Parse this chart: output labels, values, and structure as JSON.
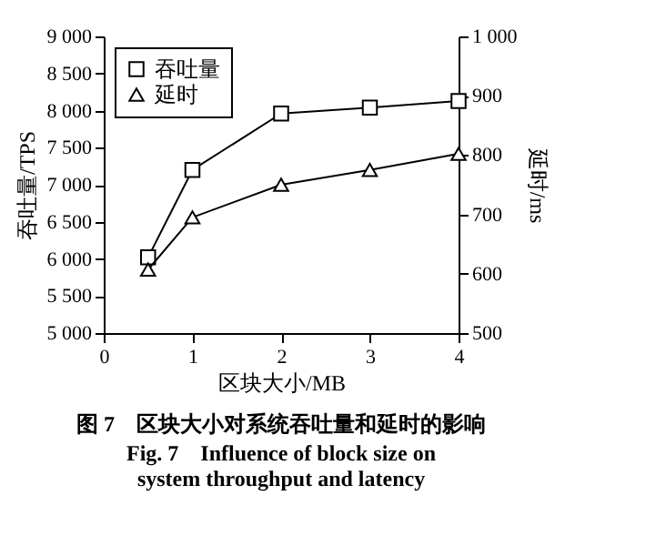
{
  "chart_data": {
    "type": "line",
    "title": "图 7　区块大小对系统吞吐量和延时的影响",
    "subtitle": "Fig. 7　Influence of block size on system throughput and latency",
    "xlabel": "区块大小/MB",
    "ylabel": "吞吐量/TPS",
    "y2label": "延时/ms",
    "x": [
      0.5,
      1,
      2,
      3,
      4
    ],
    "series": [
      {
        "name": "吞吐量",
        "color": "#000000",
        "marker": "square",
        "values": [
          6020,
          7200,
          7960,
          8040,
          8130
        ]
      },
      {
        "name": "延时",
        "color": "#000000",
        "marker": "triangle",
        "axis": "y2",
        "values": [
          607,
          695,
          750,
          775,
          802
        ]
      }
    ],
    "xlim": [
      0,
      4
    ],
    "xticks": [
      0,
      1,
      2,
      3,
      4
    ],
    "ylim": [
      5000,
      9000
    ],
    "yticks": [
      {
        "value": 5000,
        "label": "5 000"
      },
      {
        "value": 5500,
        "label": "5 500"
      },
      {
        "value": 6000,
        "label": "6 000"
      },
      {
        "value": 6500,
        "label": "6 500"
      },
      {
        "value": 7000,
        "label": "7 000"
      },
      {
        "value": 7500,
        "label": "7 500"
      },
      {
        "value": 8000,
        "label": "8 000"
      },
      {
        "value": 8500,
        "label": "8 500"
      },
      {
        "value": 9000,
        "label": "9 000"
      }
    ],
    "y2lim": [
      500,
      1000
    ],
    "y2ticks": [
      500,
      600,
      700,
      800,
      900,
      {
        "value": 1000,
        "label": "1 000"
      }
    ],
    "legend": "top left",
    "grid": false,
    "line_style": "solid"
  }
}
